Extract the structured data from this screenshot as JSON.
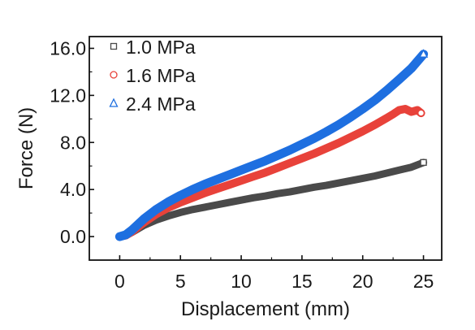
{
  "chart_data": {
    "type": "line",
    "xlabel": "Displacement (mm)",
    "ylabel": "Force (N)",
    "xlim": [
      -2.5,
      26.5
    ],
    "ylim": [
      -2.0,
      17.0
    ],
    "xticks": [
      0,
      5,
      10,
      15,
      20,
      25
    ],
    "yticks": [
      0.0,
      4.0,
      8.0,
      12.0,
      16.0
    ],
    "xtick_labels": [
      "0",
      "5",
      "10",
      "15",
      "20",
      "25"
    ],
    "ytick_labels": [
      "0.0",
      "4.0",
      "8.0",
      "12.0",
      "16.0"
    ],
    "grid": false,
    "legend_position": "top-left",
    "series": [
      {
        "name": "1.0 MPa",
        "color": "#4a4a4a",
        "marker": "square",
        "x": [
          0,
          0.5,
          1,
          2,
          3,
          4,
          5,
          6,
          7,
          8,
          9,
          10,
          11,
          12,
          13,
          14,
          15,
          16,
          17,
          18,
          19,
          20,
          21,
          22,
          23,
          24,
          25
        ],
        "y": [
          0,
          0.1,
          0.35,
          0.95,
          1.4,
          1.75,
          2.05,
          2.3,
          2.5,
          2.7,
          2.9,
          3.1,
          3.3,
          3.45,
          3.65,
          3.8,
          4.0,
          4.2,
          4.35,
          4.55,
          4.75,
          4.95,
          5.15,
          5.4,
          5.65,
          5.9,
          6.3
        ]
      },
      {
        "name": "1.6 MPa",
        "color": "#e8423a",
        "marker": "circle",
        "x": [
          0,
          0.5,
          1,
          2,
          3,
          4,
          5,
          6,
          7,
          8,
          9,
          10,
          11,
          12,
          13,
          14,
          15,
          16,
          17,
          18,
          19,
          20,
          21,
          22,
          22.5,
          23,
          23.5,
          24,
          24.5,
          24.8
        ],
        "y": [
          0,
          0.1,
          0.4,
          1.2,
          1.9,
          2.45,
          2.9,
          3.3,
          3.7,
          4.05,
          4.4,
          4.75,
          5.1,
          5.45,
          5.85,
          6.25,
          6.65,
          7.05,
          7.5,
          7.95,
          8.45,
          8.95,
          9.5,
          10.1,
          10.4,
          10.75,
          10.85,
          10.6,
          10.75,
          10.5
        ]
      },
      {
        "name": "2.4 MPa",
        "color": "#1e6fe0",
        "marker": "triangle",
        "x": [
          0,
          0.5,
          1,
          2,
          3,
          4,
          5,
          6,
          7,
          8,
          9,
          10,
          11,
          12,
          13,
          14,
          15,
          16,
          17,
          18,
          19,
          20,
          21,
          22,
          23,
          24,
          25
        ],
        "y": [
          0,
          0.15,
          0.55,
          1.5,
          2.3,
          2.95,
          3.5,
          4.0,
          4.45,
          4.85,
          5.25,
          5.65,
          6.05,
          6.45,
          6.9,
          7.35,
          7.85,
          8.35,
          8.9,
          9.5,
          10.15,
          10.85,
          11.6,
          12.45,
          13.35,
          14.3,
          15.5
        ]
      }
    ]
  }
}
